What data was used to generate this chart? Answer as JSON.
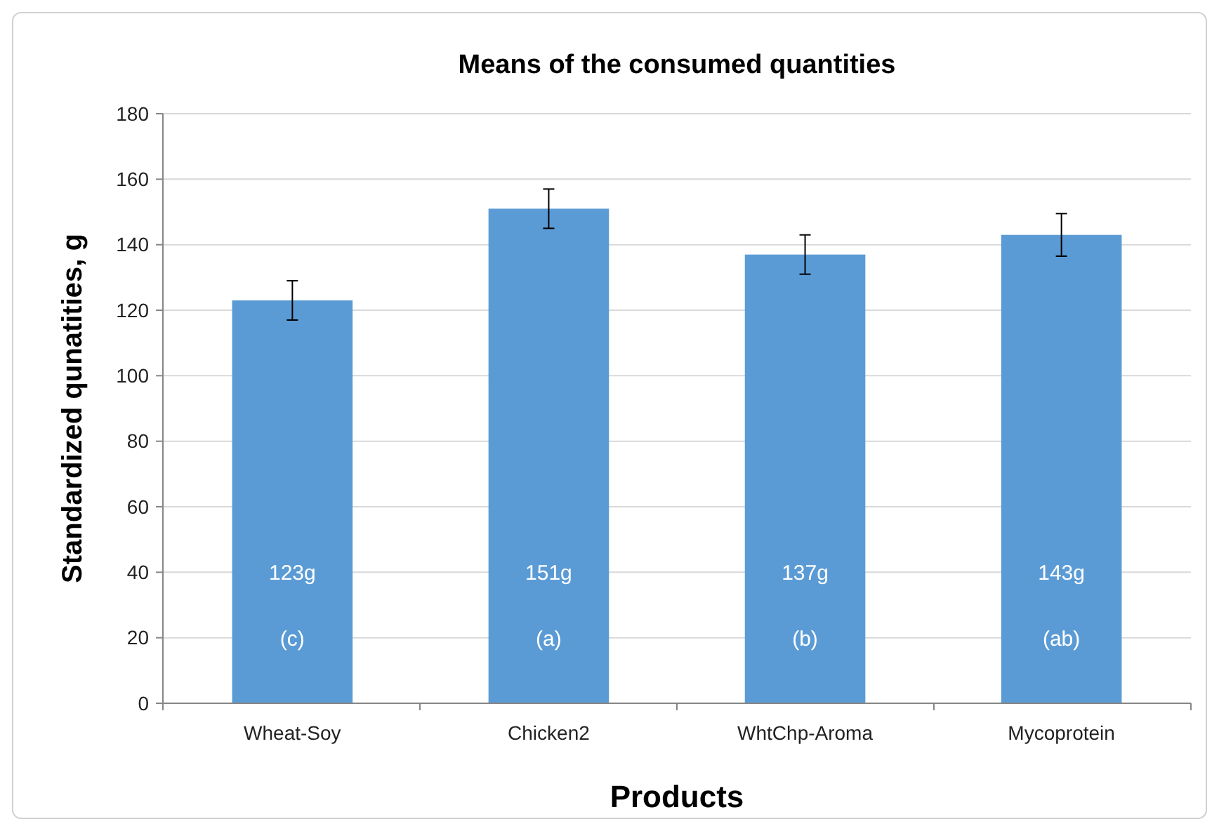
{
  "chart_data": {
    "type": "bar",
    "title": "Means of the consumed quantities",
    "xlabel": "Products",
    "ylabel": "Standardized qunatities, g",
    "categories": [
      "Wheat-Soy",
      "Chicken2",
      "WhtChp-Aroma",
      "Mycoprotein"
    ],
    "values": [
      123,
      151,
      137,
      143
    ],
    "color": "#5b9bd5",
    "errors": [
      6,
      6,
      6,
      6.5
    ],
    "value_labels": [
      "123g",
      "151g",
      "137g",
      "143g"
    ],
    "annotations": [
      "(c)",
      "(a)",
      "(b)",
      "(ab)"
    ],
    "ylim": [
      0,
      180
    ],
    "yticks": [
      0,
      20,
      40,
      60,
      80,
      100,
      120,
      140,
      160,
      180
    ],
    "grid": "y"
  }
}
